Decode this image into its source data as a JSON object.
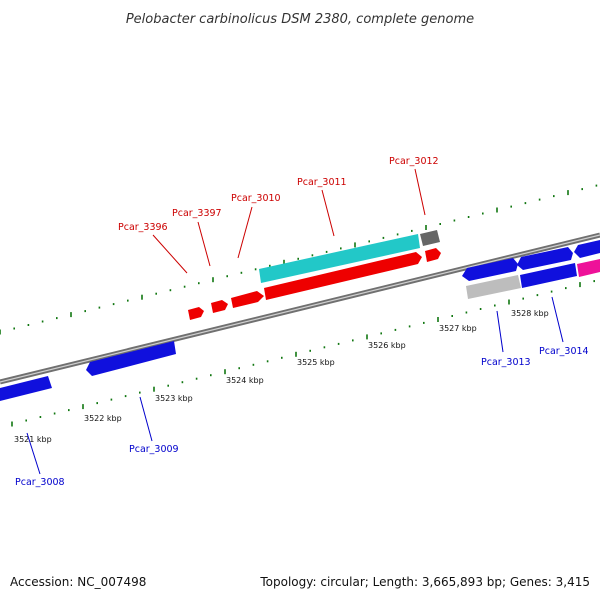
{
  "title": "Pelobacter carbinolicus DSM 2380, complete genome",
  "footer": {
    "accession": "Accession: NC_007498",
    "summary": "Topology: circular; Length: 3,665,893 bp; Genes: 3,415"
  },
  "colors": {
    "plus_strand_label": "#cc0000",
    "minus_strand_label": "#0000cc",
    "tick": "#117711",
    "backbone": "#808080",
    "red_gene": "#ee0000",
    "blue_gene": "#1010dd",
    "cyan_gene": "#22c8c8",
    "gray_gene": "#666666",
    "lightgray_gene": "#bdbdbd",
    "magenta_gene": "#ee1199"
  },
  "tick_labels": [
    "3521 kbp",
    "3522 kbp",
    "3523 kbp",
    "3524 kbp",
    "3525 kbp",
    "3526 kbp",
    "3527 kbp",
    "3528 kbp"
  ],
  "gene_labels": {
    "pcar_3396": "Pcar_3396",
    "pcar_3397": "Pcar_3397",
    "pcar_3010": "Pcar_3010",
    "pcar_3011": "Pcar_3011",
    "pcar_3012": "Pcar_3012",
    "pcar_3008": "Pcar_3008",
    "pcar_3009": "Pcar_3009",
    "pcar_3013": "Pcar_3013",
    "pcar_3014": "Pcar_3014"
  }
}
